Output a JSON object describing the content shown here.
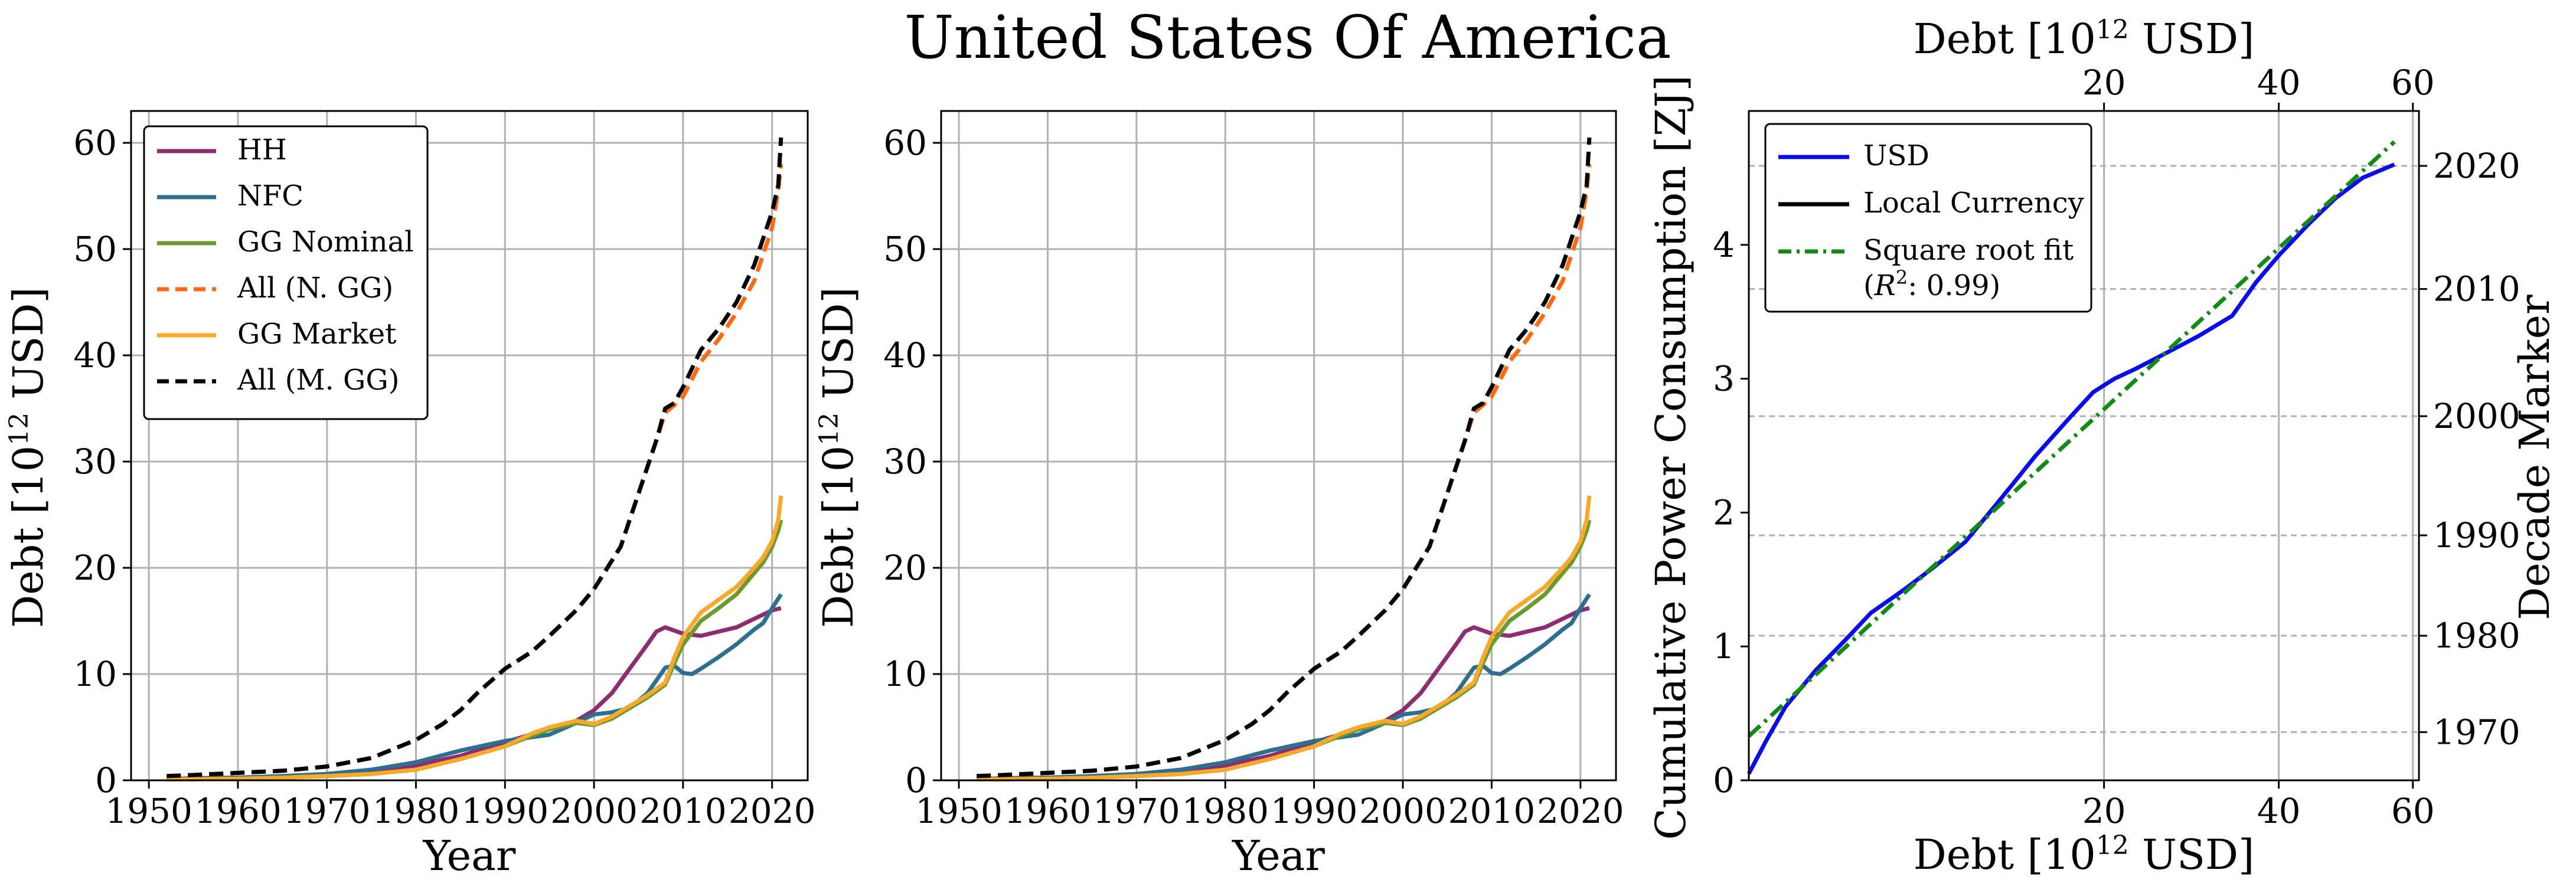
{
  "figure": {
    "title": "United States Of America"
  },
  "chart_data": [
    {
      "type": "line",
      "panel": "left",
      "xlabel": "Year",
      "ylabel": "Debt [10^12 USD]",
      "ylabel_parts": [
        "Debt [10",
        "12",
        " USD]"
      ],
      "xlim": [
        1948,
        2024
      ],
      "ylim": [
        0,
        63
      ],
      "xticks": [
        1950,
        1960,
        1970,
        1980,
        1990,
        2000,
        2010,
        2020
      ],
      "yticks": [
        0,
        10,
        20,
        30,
        40,
        50,
        60
      ],
      "grid": true,
      "legend": {
        "placement": "top-left",
        "entries": [
          "HH",
          "NFC",
          "GG Nominal",
          "All (N. GG)",
          "GG Market",
          "All (M. GG)"
        ]
      },
      "series": [
        {
          "name": "HH",
          "color": "#8e2c72",
          "style": "solid",
          "x": [
            1952,
            1955,
            1960,
            1965,
            1970,
            1975,
            1980,
            1985,
            1990,
            1995,
            1998,
            2000,
            2002,
            2004,
            2006,
            2007,
            2008,
            2009,
            2010,
            2012,
            2014,
            2016,
            2018,
            2019,
            2020,
            2021
          ],
          "y": [
            0.1,
            0.2,
            0.25,
            0.3,
            0.4,
            0.7,
            1.4,
            2.3,
            3.6,
            4.8,
            5.6,
            6.6,
            8.2,
            10.5,
            12.8,
            14.0,
            14.4,
            14.1,
            13.8,
            13.6,
            14.0,
            14.4,
            15.2,
            15.6,
            16.0,
            16.2
          ]
        },
        {
          "name": "NFC",
          "color": "#2e6e8e",
          "style": "solid",
          "x": [
            1952,
            1955,
            1960,
            1965,
            1970,
            1975,
            1980,
            1985,
            1990,
            1995,
            1998,
            2000,
            2002,
            2004,
            2006,
            2007,
            2008,
            2009,
            2010,
            2011,
            2012,
            2014,
            2016,
            2018,
            2019,
            2020,
            2021
          ],
          "y": [
            0.1,
            0.15,
            0.25,
            0.4,
            0.6,
            1.0,
            1.7,
            2.8,
            3.7,
            4.3,
            5.4,
            6.2,
            6.4,
            6.8,
            8.2,
            9.4,
            10.6,
            10.8,
            10.1,
            10.0,
            10.5,
            11.6,
            12.8,
            14.2,
            14.8,
            16.2,
            17.5
          ]
        },
        {
          "name": "GG Nominal",
          "color": "#6d9a2e",
          "style": "solid",
          "x": [
            1952,
            1955,
            1960,
            1965,
            1970,
            1975,
            1980,
            1985,
            1990,
            1993,
            1995,
            1998,
            2000,
            2002,
            2004,
            2006,
            2008,
            2009,
            2010,
            2012,
            2014,
            2016,
            2018,
            2019,
            2020,
            2020.7,
            2021
          ],
          "y": [
            0.1,
            0.1,
            0.15,
            0.25,
            0.4,
            0.6,
            1.0,
            2.0,
            3.2,
            4.2,
            4.8,
            5.4,
            5.2,
            5.8,
            6.8,
            7.8,
            9.0,
            11.0,
            12.8,
            15.0,
            16.2,
            17.5,
            19.5,
            20.5,
            22.0,
            23.5,
            24.5
          ]
        },
        {
          "name": "All (N. GG)",
          "color": "#ff6a13",
          "style": "dashed",
          "x": [
            1952,
            1955,
            1960,
            1965,
            1970,
            1975,
            1980,
            1983,
            1985,
            1987,
            1990,
            1993,
            1995,
            1998,
            2000,
            2003,
            2005,
            2007,
            2008,
            2009,
            2010,
            2012,
            2014,
            2016,
            2018,
            2019,
            2020,
            2020.7,
            2021
          ],
          "y": [
            0.4,
            0.5,
            0.7,
            0.9,
            1.3,
            2.1,
            3.8,
            5.3,
            6.6,
            8.3,
            10.5,
            12.1,
            13.6,
            16.0,
            18.0,
            22.0,
            27.0,
            32.0,
            34.6,
            35.3,
            36.1,
            39.4,
            41.5,
            44.0,
            47.0,
            49.5,
            52.0,
            55.5,
            58.0
          ]
        },
        {
          "name": "GG Market",
          "color": "#f6a92a",
          "style": "solid",
          "x": [
            1952,
            1955,
            1960,
            1965,
            1970,
            1975,
            1980,
            1985,
            1990,
            1993,
            1995,
            1998,
            2000,
            2002,
            2004,
            2006,
            2008,
            2009,
            2010,
            2012,
            2014,
            2016,
            2018,
            2019,
            2020,
            2020.7,
            2021
          ],
          "y": [
            0.1,
            0.1,
            0.15,
            0.25,
            0.4,
            0.6,
            1.0,
            2.0,
            3.2,
            4.4,
            5.0,
            5.6,
            5.3,
            6.0,
            7.0,
            8.0,
            9.2,
            11.5,
            13.5,
            15.8,
            17.0,
            18.2,
            20.0,
            21.0,
            22.5,
            24.5,
            26.8
          ]
        },
        {
          "name": "All (M. GG)",
          "color": "#000000",
          "style": "dashed",
          "x": [
            1952,
            1955,
            1960,
            1965,
            1970,
            1975,
            1980,
            1983,
            1985,
            1987,
            1990,
            1993,
            1995,
            1998,
            2000,
            2003,
            2005,
            2007,
            2008,
            2009,
            2010,
            2012,
            2014,
            2016,
            2018,
            2019,
            2020,
            2020.7,
            2021
          ],
          "y": [
            0.4,
            0.5,
            0.7,
            0.9,
            1.3,
            2.1,
            3.8,
            5.3,
            6.6,
            8.3,
            10.5,
            12.1,
            13.6,
            16.0,
            18.0,
            22.0,
            27.0,
            32.0,
            35.0,
            35.5,
            37.0,
            40.5,
            42.5,
            45.0,
            48.5,
            51.0,
            53.5,
            56.0,
            60.5
          ]
        }
      ]
    },
    {
      "type": "line",
      "panel": "middle",
      "xlabel": "Year",
      "ylabel": "Debt [10^12 USD]",
      "ylabel_parts": [
        "Debt [10",
        "12",
        " USD]"
      ],
      "xlim": [
        1948,
        2024
      ],
      "ylim": [
        0,
        63
      ],
      "xticks": [
        1950,
        1960,
        1970,
        1980,
        1990,
        2000,
        2010,
        2020
      ],
      "yticks": [
        0,
        10,
        20,
        30,
        40,
        50,
        60
      ],
      "grid": true,
      "series_same_as": "left"
    },
    {
      "type": "line",
      "panel": "right",
      "xlabel": "Debt [10^12 USD]",
      "xlabel_parts": [
        "Debt [10",
        "12",
        " USD]"
      ],
      "top_xlabel": "Debt [10^12 USD]",
      "ylabel": "Cumulative Power Consumption [ZJ]",
      "right_ylabel": "Decade Marker",
      "x_scale": "sqrt",
      "xlim": [
        0.5,
        61
      ],
      "ylim": [
        0,
        5.0
      ],
      "xticks": [
        20,
        40,
        60
      ],
      "yticks": [
        0,
        1,
        2,
        3,
        4
      ],
      "right_yticks": [
        {
          "label": "1970",
          "y": 0.36
        },
        {
          "label": "1980",
          "y": 1.08
        },
        {
          "label": "1990",
          "y": 1.83
        },
        {
          "label": "2000",
          "y": 2.72
        },
        {
          "label": "2010",
          "y": 3.67
        },
        {
          "label": "2020",
          "y": 4.59
        }
      ],
      "grid": true,
      "legend": {
        "placement": "top-left",
        "entries": [
          "USD",
          "Local Currency",
          "Square root fit",
          "(R^2: 0.99)"
        ],
        "fit_r2_text": [
          "(",
          "R",
          "2",
          ": 0.99)"
        ]
      },
      "series": [
        {
          "name": "USD",
          "color": "#0a0aee",
          "style": "solid",
          "x": [
            0.5,
            0.8,
            1.2,
            2.0,
            3.0,
            4.0,
            5.5,
            7.0,
            9.0,
            11.0,
            14.0,
            17.0,
            19.0,
            21.0,
            23.0,
            26.0,
            30.0,
            34.0,
            37.0,
            40.0,
            44.0,
            48.0,
            52.0,
            57.0
          ],
          "y": [
            0.05,
            0.3,
            0.55,
            0.82,
            1.05,
            1.25,
            1.42,
            1.58,
            1.78,
            2.05,
            2.42,
            2.72,
            2.9,
            3.0,
            3.07,
            3.18,
            3.32,
            3.47,
            3.72,
            3.92,
            4.15,
            4.35,
            4.5,
            4.6
          ]
        },
        {
          "name": "Square root fit",
          "color": "#138a13",
          "style": "dashdot",
          "x": [
            0.5,
            57.0
          ],
          "y": [
            0.33,
            4.77
          ]
        }
      ]
    }
  ]
}
